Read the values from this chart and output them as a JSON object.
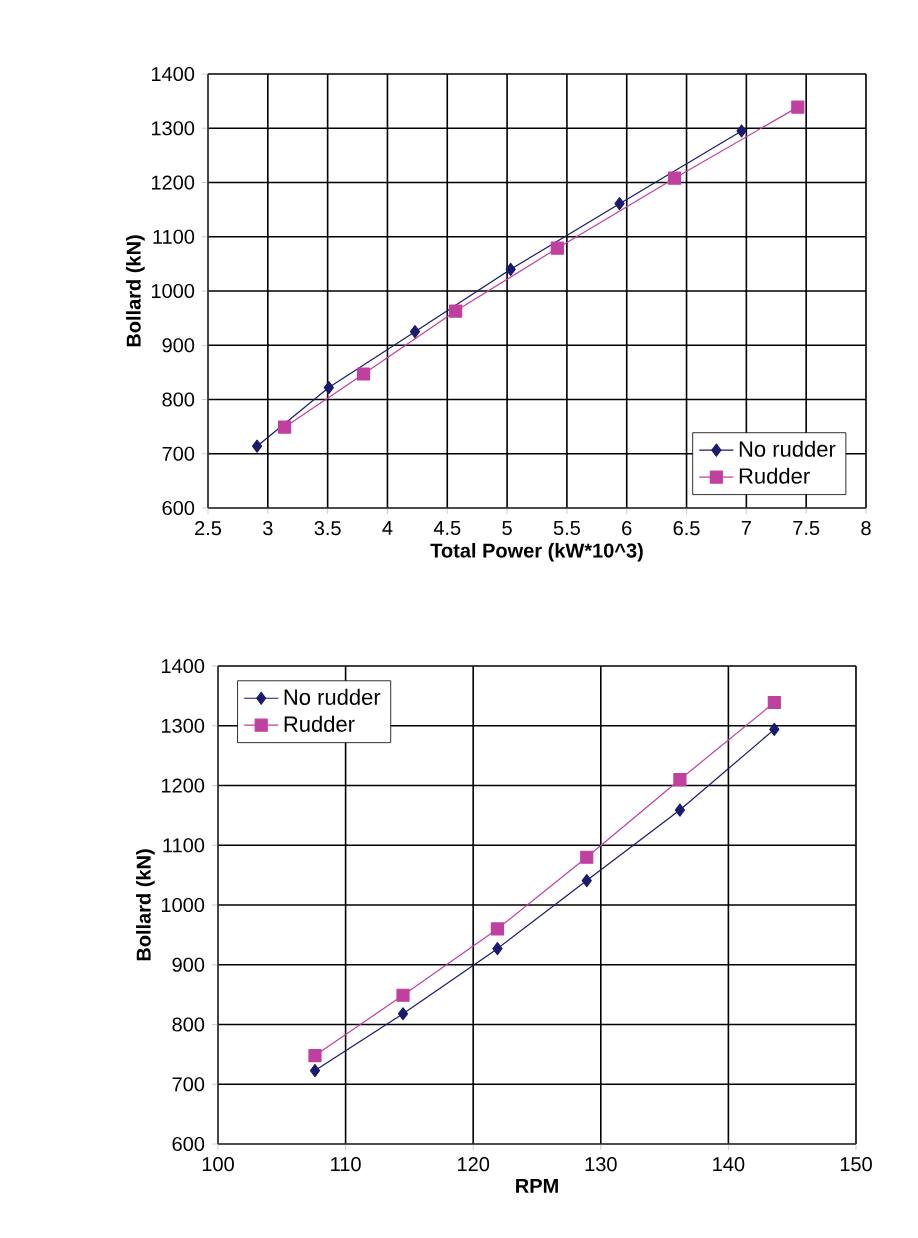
{
  "chart_data": [
    {
      "type": "line",
      "xlabel": "Total Power (kW*10^3)",
      "ylabel": "Bollard (kN)",
      "xlim": [
        2.5,
        8
      ],
      "xticks": [
        2.5,
        3,
        3.5,
        4,
        4.5,
        5,
        5.5,
        6,
        6.5,
        7,
        7.5,
        8
      ],
      "ylim": [
        600,
        1400
      ],
      "yticks": [
        600,
        700,
        800,
        900,
        1000,
        1100,
        1200,
        1300,
        1400
      ],
      "grid": true,
      "legend": "bottom right",
      "series": [
        {
          "name": "No rudder",
          "color": "#1a1a6e",
          "marker": "diamond",
          "x": [
            2.91,
            3.51,
            4.23,
            5.03,
            5.94,
            6.96
          ],
          "values": [
            714,
            822,
            925,
            1040,
            1161,
            1295
          ]
        },
        {
          "name": "Rudder",
          "color": "#c040a0",
          "marker": "square",
          "x": [
            3.14,
            3.8,
            4.57,
            5.42,
            6.4,
            7.43
          ],
          "values": [
            749,
            847,
            963,
            1079,
            1208,
            1339
          ]
        }
      ]
    },
    {
      "type": "line",
      "xlabel": "RPM",
      "ylabel": "Bollard (kN)",
      "xlim": [
        100,
        150
      ],
      "xticks": [
        100,
        110,
        120,
        130,
        140,
        150
      ],
      "ylim": [
        600,
        1400
      ],
      "yticks": [
        600,
        700,
        800,
        900,
        1000,
        1100,
        1200,
        1300,
        1400
      ],
      "grid": true,
      "legend": "top left",
      "series": [
        {
          "name": "No rudder",
          "color": "#1a1a6e",
          "marker": "diamond",
          "x": [
            107.6,
            114.5,
            121.9,
            128.9,
            136.2,
            143.6
          ],
          "values": [
            723,
            818,
            927,
            1041,
            1159,
            1294
          ]
        },
        {
          "name": "Rudder",
          "color": "#c040a0",
          "marker": "square",
          "x": [
            107.6,
            114.5,
            121.9,
            128.9,
            136.2,
            143.6
          ],
          "values": [
            748,
            849,
            960,
            1080,
            1210,
            1339
          ]
        }
      ]
    }
  ]
}
